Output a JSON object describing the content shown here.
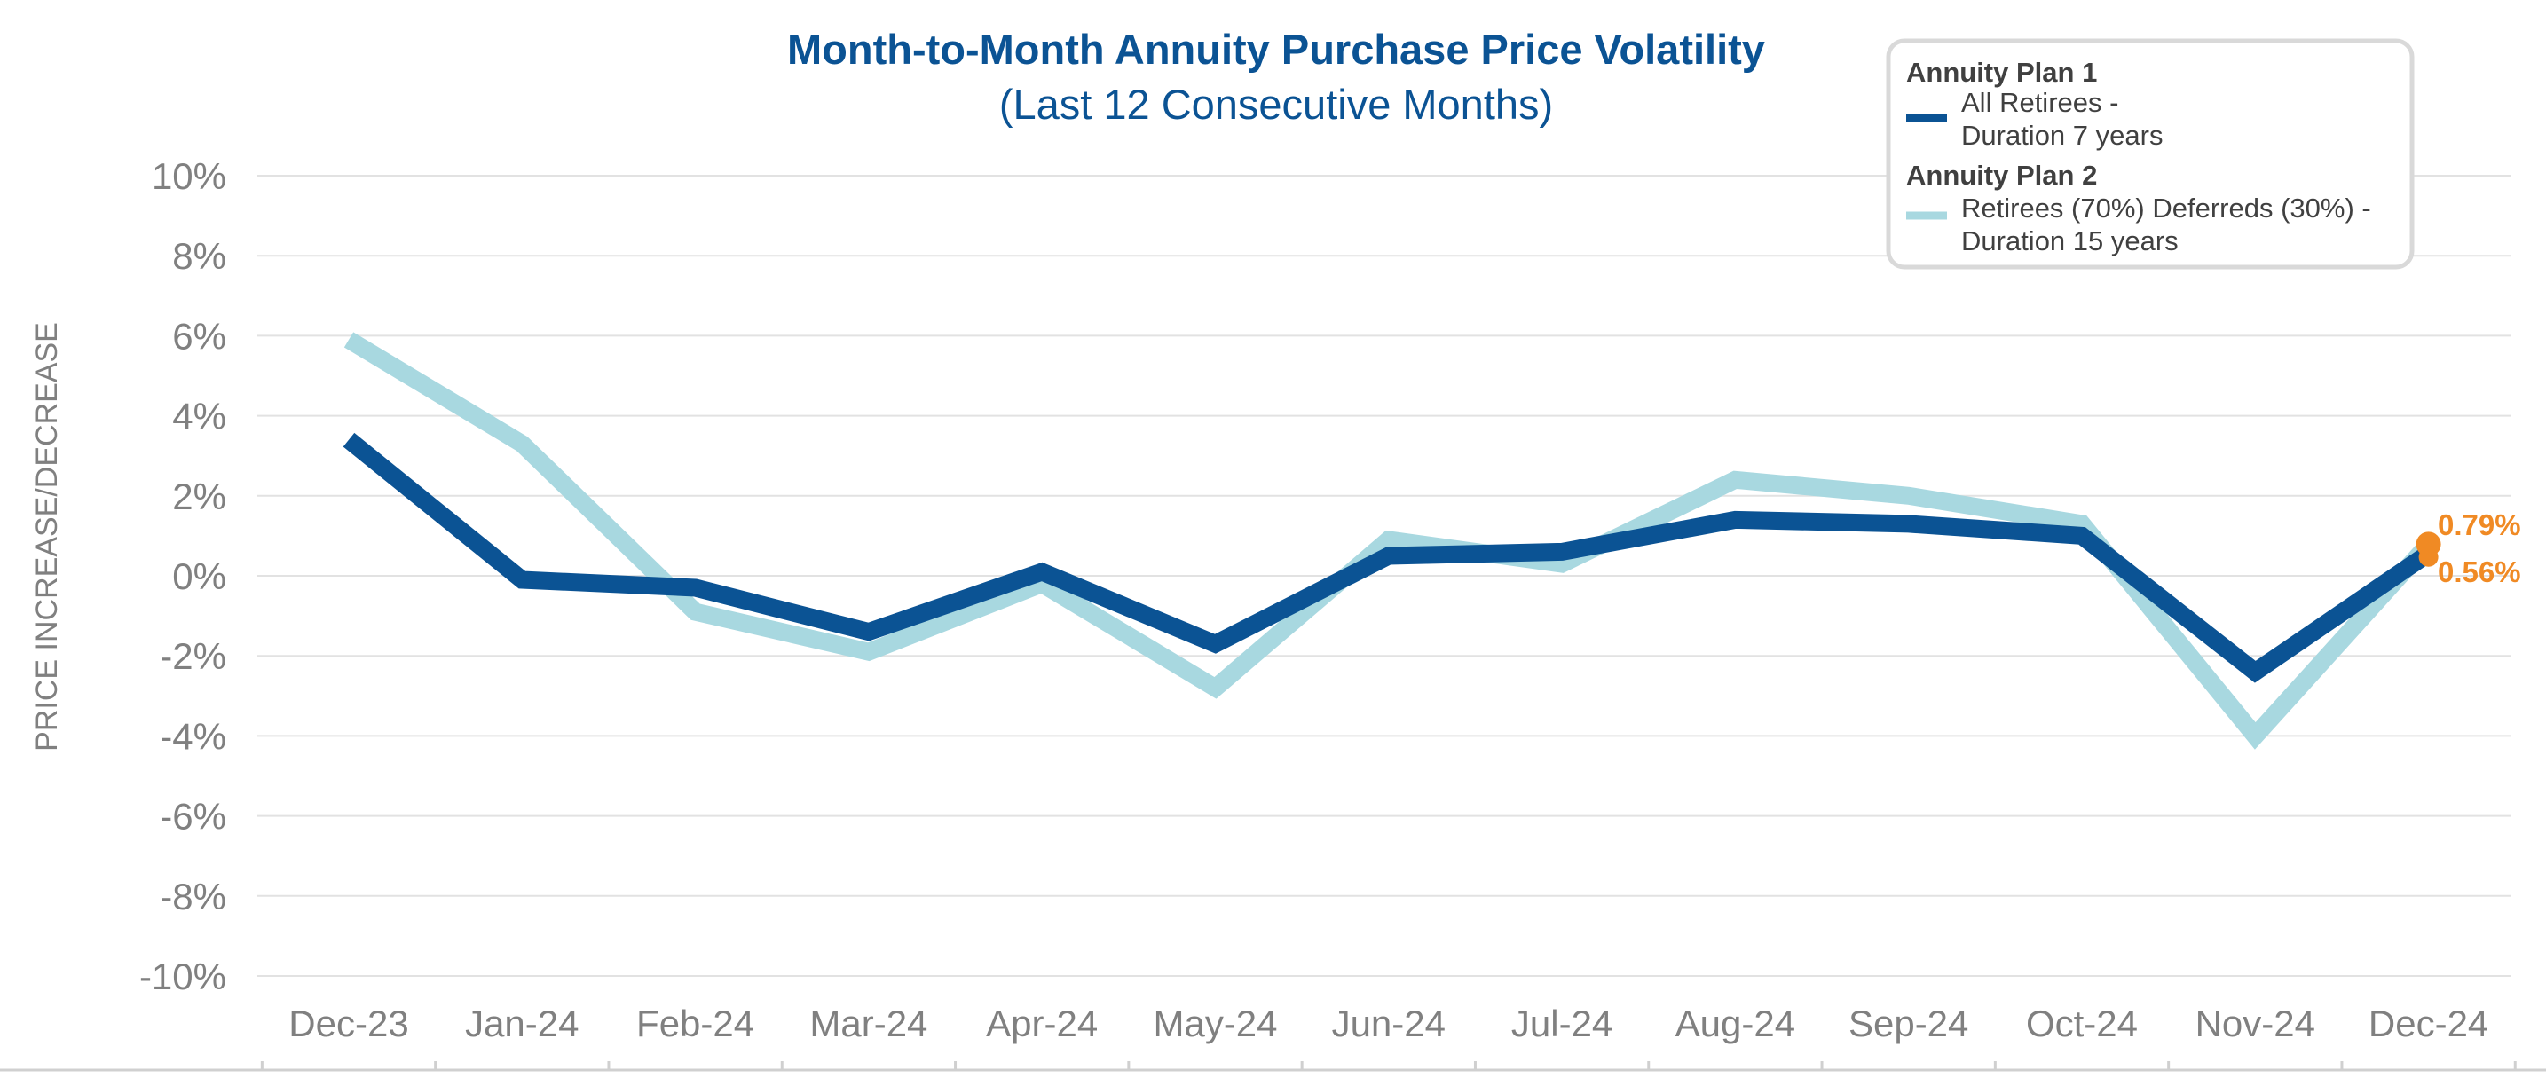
{
  "chart_data": {
    "type": "line",
    "title": "Month-to-Month Annuity Purchase Price Volatility",
    "subtitle": "(Last 12 Consecutive Months)",
    "xlabel": "",
    "ylabel": "PRICE INCREASE/DECREASE",
    "categories": [
      "Dec-23",
      "Jan-24",
      "Feb-24",
      "Mar-24",
      "Apr-24",
      "May-24",
      "Jun-24",
      "Jul-24",
      "Aug-24",
      "Sep-24",
      "Oct-24",
      "Nov-24",
      "Dec-24"
    ],
    "ylim": [
      -10,
      10
    ],
    "yticks": [
      10,
      8,
      6,
      4,
      2,
      0,
      -2,
      -4,
      -6,
      -8,
      -10
    ],
    "ytick_labels": [
      "10%",
      "8%",
      "6%",
      "4%",
      "2%",
      "0%",
      "-2%",
      "-4%",
      "-6%",
      "-8%",
      "-10%"
    ],
    "grid": true,
    "legend_position": "top-right",
    "series": [
      {
        "group": "Annuity Plan 1",
        "name": "All Retirees -",
        "name_line2": "Duration 7 years",
        "color": "#0b5394",
        "values": [
          3.4,
          -0.1,
          -0.3,
          -1.4,
          0.1,
          -1.7,
          0.5,
          0.6,
          1.4,
          1.3,
          1.0,
          -2.4,
          0.56
        ]
      },
      {
        "group": "Annuity Plan 2",
        "name": "Retirees (70%) Deferreds (30%) -",
        "name_line2": "Duration 15 years",
        "color": "#a8d8e0",
        "values": [
          5.9,
          3.3,
          -0.9,
          -1.9,
          -0.2,
          -2.8,
          0.9,
          0.3,
          2.4,
          2.0,
          1.3,
          -4.0,
          0.79
        ]
      }
    ],
    "annotations": [
      {
        "text": "0.79%",
        "value": 0.79,
        "color": "#f08a24"
      },
      {
        "text": "0.56%",
        "value": 0.56,
        "color": "#f08a24"
      }
    ],
    "marker_color": "#f08a24",
    "title_color": "#0b5394",
    "axis_text_color": "#808080",
    "grid_color": "#e2e2e2"
  }
}
